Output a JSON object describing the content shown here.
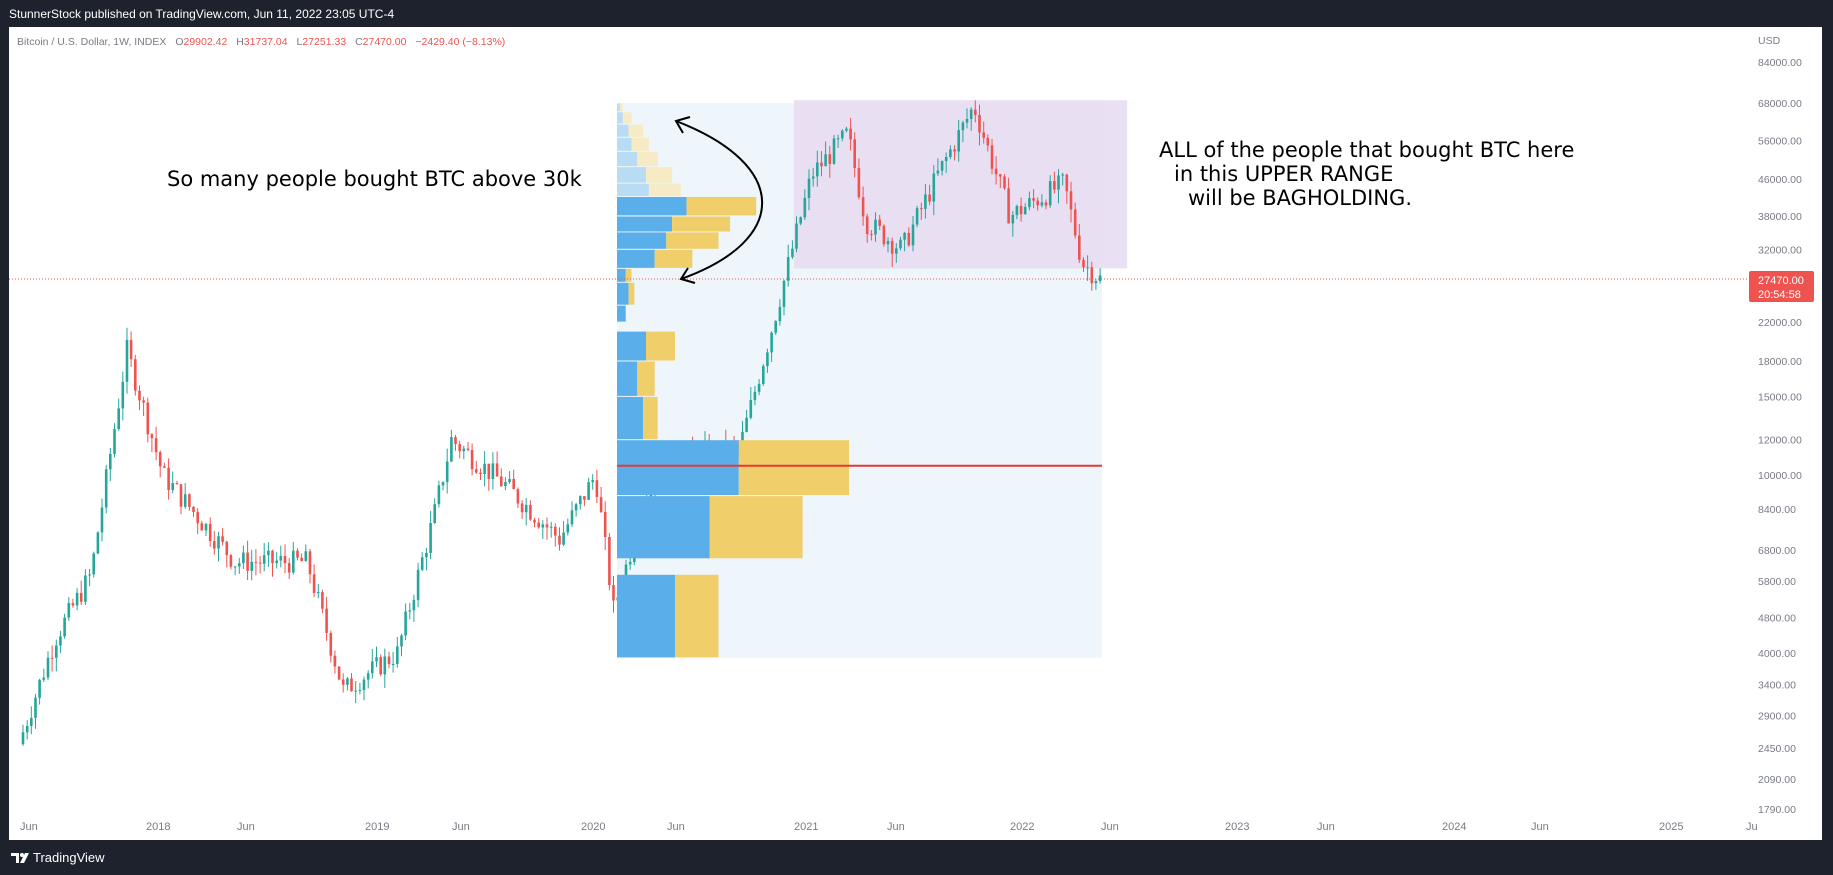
{
  "header": {
    "publisher_text": "StunnerStock published on TradingView.com, Jun 11, 2022 23:05 UTC-4"
  },
  "footer": {
    "brand": "TradingView"
  },
  "symbol_bar": {
    "name": "Bitcoin / U.S. Dollar, 1W, INDEX",
    "o_label": "O",
    "o_value": "29902.42",
    "h_label": "H",
    "h_value": "31737.04",
    "l_label": "L",
    "l_value": "27251.33",
    "c_label": "C",
    "c_value": "27470.00",
    "change": "−2429.40 (−8.13%)"
  },
  "price_axis": {
    "currency": "USD",
    "ticks": [
      "84000.00",
      "68000.00",
      "56000.00",
      "46000.00",
      "38000.00",
      "32000.00",
      "22000.00",
      "18000.00",
      "15000.00",
      "12000.00",
      "10000.00",
      "8400.00",
      "6800.00",
      "5800.00",
      "4800.00",
      "4000.00",
      "3400.00",
      "2900.00",
      "2450.00",
      "2090.00",
      "1790.00"
    ],
    "last_price": "27470.00",
    "countdown": "20:54:58"
  },
  "time_axis": {
    "ticks": [
      "Jun",
      "2018",
      "Jun",
      "2019",
      "Jun",
      "2020",
      "Jun",
      "2021",
      "Jun",
      "2022",
      "Jun",
      "2023",
      "Jun",
      "2024",
      "Jun",
      "2025",
      "Ju"
    ]
  },
  "annotations": {
    "left_note": "So many people bought BTC above 30k",
    "right_note_line1": "ALL of the people that bought BTC here",
    "right_note_line2": "in this UPPER RANGE",
    "right_note_line3": "will be BAGHOLDING."
  },
  "colors": {
    "up_candle": "#26a69a",
    "down_candle": "#ef5350",
    "volume_up": "#5aaeea",
    "volume_down": "#f0cf6a",
    "range_box": "#e6daf1",
    "profile_box": "#eef6fb",
    "poc_line": "#e53935",
    "price_label_bg": "#ef5350"
  },
  "chart_data": {
    "type": "candlestick",
    "symbol": "Bitcoin / U.S. Dollar, 1W, INDEX",
    "y_scale": "log",
    "ylim": [
      1790,
      84000
    ],
    "xlim": [
      "2017-06",
      "2025-06"
    ],
    "last_close": 27470,
    "close_path": [
      {
        "date": "2017-06",
        "price": 2500
      },
      {
        "date": "2017-08",
        "price": 4300
      },
      {
        "date": "2017-10",
        "price": 6000
      },
      {
        "date": "2017-12",
        "price": 19000
      },
      {
        "date": "2018-02",
        "price": 10000
      },
      {
        "date": "2018-04",
        "price": 8000
      },
      {
        "date": "2018-06",
        "price": 6400
      },
      {
        "date": "2018-10",
        "price": 6400
      },
      {
        "date": "2018-12",
        "price": 3300
      },
      {
        "date": "2019-03",
        "price": 4000
      },
      {
        "date": "2019-05",
        "price": 8000
      },
      {
        "date": "2019-06",
        "price": 12000
      },
      {
        "date": "2019-09",
        "price": 9500
      },
      {
        "date": "2019-12",
        "price": 7200
      },
      {
        "date": "2020-02",
        "price": 10000
      },
      {
        "date": "2020-03",
        "price": 5000
      },
      {
        "date": "2020-05",
        "price": 9500
      },
      {
        "date": "2020-07",
        "price": 11000
      },
      {
        "date": "2020-10",
        "price": 11500
      },
      {
        "date": "2020-12",
        "price": 23000
      },
      {
        "date": "2021-01",
        "price": 33000
      },
      {
        "date": "2021-02",
        "price": 47000
      },
      {
        "date": "2021-04",
        "price": 58000
      },
      {
        "date": "2021-05",
        "price": 37000
      },
      {
        "date": "2021-07",
        "price": 32000
      },
      {
        "date": "2021-09",
        "price": 47000
      },
      {
        "date": "2021-11",
        "price": 67000
      },
      {
        "date": "2022-01",
        "price": 38000
      },
      {
        "date": "2022-04",
        "price": 45000
      },
      {
        "date": "2022-05",
        "price": 29900
      },
      {
        "date": "2022-06",
        "price": 27470
      }
    ],
    "volume_profile": {
      "point_of_control": 10500,
      "rows": [
        {
          "price_low": 3900,
          "price_high": 6000,
          "up": 1.0,
          "down": 0.75
        },
        {
          "price_low": 6500,
          "price_high": 9000,
          "up": 1.6,
          "down": 1.6
        },
        {
          "price_low": 9000,
          "price_high": 12000,
          "up": 2.1,
          "down": 1.9
        },
        {
          "price_low": 12000,
          "price_high": 15000,
          "up": 0.45,
          "down": 0.25
        },
        {
          "price_low": 15000,
          "price_high": 18000,
          "up": 0.35,
          "down": 0.3
        },
        {
          "price_low": 18000,
          "price_high": 21000,
          "up": 0.5,
          "down": 0.5
        },
        {
          "price_low": 22000,
          "price_high": 24000,
          "up": 0.15,
          "down": 0.0
        },
        {
          "price_low": 24000,
          "price_high": 27000,
          "up": 0.2,
          "down": 0.1
        },
        {
          "price_low": 27000,
          "price_high": 29000,
          "up": 0.15,
          "down": 0.1
        },
        {
          "price_low": 29000,
          "price_high": 32000,
          "up": 0.65,
          "down": 0.65
        },
        {
          "price_low": 32000,
          "price_high": 35000,
          "up": 0.85,
          "down": 0.9
        },
        {
          "price_low": 35000,
          "price_high": 38000,
          "up": 0.95,
          "down": 1.0
        },
        {
          "price_low": 38000,
          "price_high": 42000,
          "up": 1.2,
          "down": 1.2
        }
      ]
    },
    "upper_range": {
      "from": "2021-01",
      "to": "2022-06",
      "price_low": 29000,
      "price_high": 69000
    }
  }
}
